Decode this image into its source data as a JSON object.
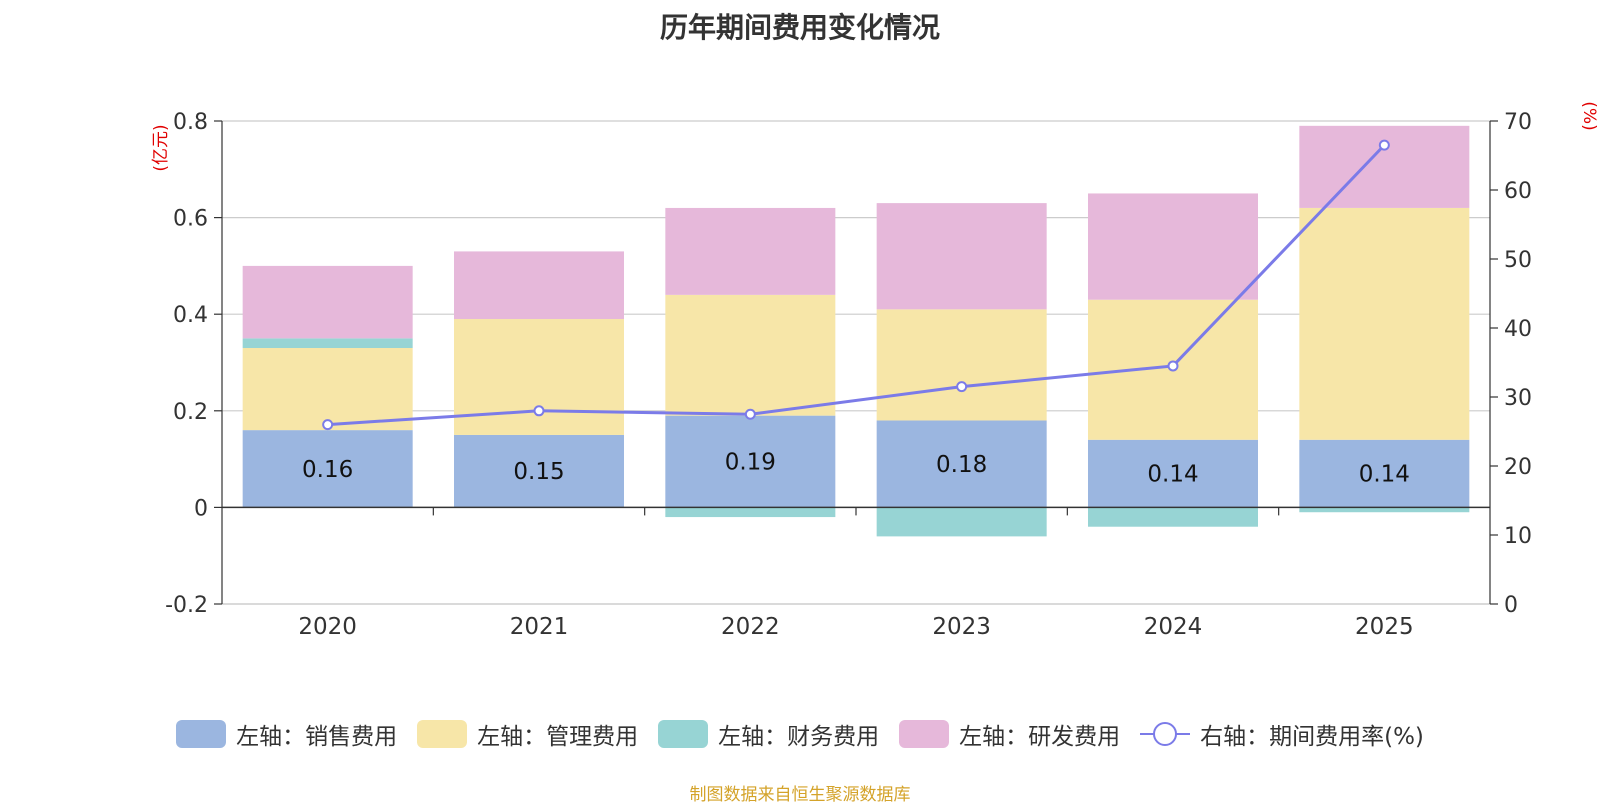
{
  "title": "历年期间费用变化情况",
  "source": "制图数据来自恒生聚源数据库",
  "colors": {
    "sales": "#9bb6e0",
    "admin": "#f7e6a8",
    "finance": "#97d4d4",
    "rd": "#e6b8da",
    "rate": "#7b7be8",
    "axis_unit": "#e00000",
    "source": "#d4a32a"
  },
  "legend": [
    {
      "label": "左轴：销售费用",
      "key": "sales"
    },
    {
      "label": "左轴：管理费用",
      "key": "admin"
    },
    {
      "label": "左轴：财务费用",
      "key": "finance"
    },
    {
      "label": "左轴：研发费用",
      "key": "rd"
    },
    {
      "label": "右轴：期间费用率(%)",
      "key": "rate"
    }
  ],
  "chart_data": {
    "type": "bar",
    "stacked": true,
    "title": "历年期间费用变化情况",
    "categories": [
      "2020",
      "2021",
      "2022",
      "2023",
      "2024",
      "2025"
    ],
    "y_left": {
      "unit": "(亿元)",
      "range": [
        -0.2,
        0.8
      ],
      "ticks": [
        -0.2,
        0,
        0.2,
        0.4,
        0.6,
        0.8
      ],
      "tick_labels": [
        "-0.2",
        "0",
        "0.2",
        "0.4",
        "0.6",
        "0.8"
      ]
    },
    "y_right": {
      "unit": "(%)",
      "range": [
        0,
        70
      ],
      "ticks": [
        0,
        10,
        20,
        30,
        40,
        50,
        60,
        70
      ],
      "tick_labels": [
        "0",
        "10",
        "20",
        "30",
        "40",
        "50",
        "60",
        "70"
      ]
    },
    "series": [
      {
        "name": "左轴：销售费用",
        "key": "sales",
        "axis": "left",
        "values": [
          0.16,
          0.15,
          0.19,
          0.18,
          0.14,
          0.14
        ],
        "labels": [
          "0.16",
          "0.15",
          "0.19",
          "0.18",
          "0.14",
          "0.14"
        ]
      },
      {
        "name": "左轴：管理费用",
        "key": "admin",
        "axis": "left",
        "values": [
          0.17,
          0.24,
          0.25,
          0.23,
          0.29,
          0.48
        ]
      },
      {
        "name": "左轴：财务费用",
        "key": "finance",
        "axis": "left",
        "values": [
          0.02,
          0.0,
          -0.02,
          -0.06,
          -0.04,
          -0.01
        ]
      },
      {
        "name": "左轴：研发费用",
        "key": "rd",
        "axis": "left",
        "values": [
          0.15,
          0.14,
          0.18,
          0.22,
          0.22,
          0.17
        ]
      },
      {
        "name": "右轴：期间费用率(%)",
        "key": "rate",
        "axis": "right",
        "type": "line",
        "values": [
          26.0,
          28.0,
          27.5,
          31.5,
          34.5,
          66.5
        ]
      }
    ],
    "legend_position": "bottom",
    "grid": true
  }
}
